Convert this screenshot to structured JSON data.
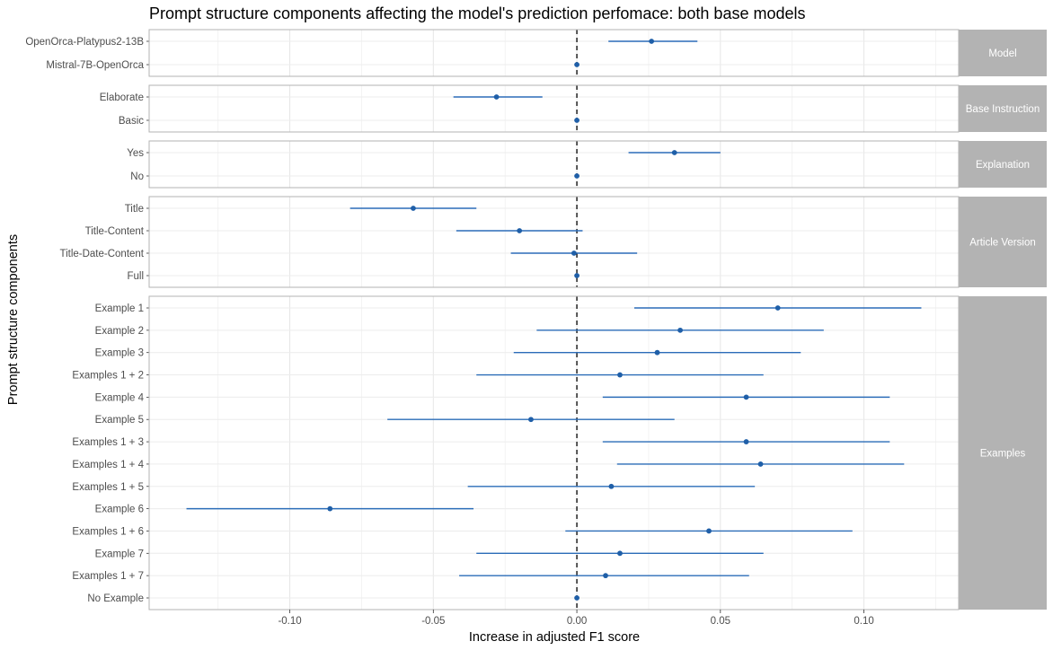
{
  "chart_data": {
    "type": "forest",
    "title": "Prompt structure components affecting the model's prediction perfomace: both base models",
    "xlabel": "Increase in adjusted F1 score",
    "ylabel": "Prompt structure components",
    "xlim": [
      -0.149,
      0.133
    ],
    "xticks": [
      -0.1,
      -0.05,
      0.0,
      0.05,
      0.1
    ],
    "xtick_labels": [
      "-0.10",
      "-0.05",
      "0.00",
      "0.05",
      "0.10"
    ],
    "reference_line": 0,
    "grid": true,
    "colors": {
      "point": "#1f5fa8",
      "line": "#2b6cb8",
      "strip": "#b3b3b3",
      "panel_border": "#b3b3b3"
    },
    "panels": [
      {
        "label": "Model",
        "rows": [
          {
            "label": "OpenOrca-Platypus2-13B",
            "estimate": 0.026,
            "low": 0.011,
            "high": 0.042
          },
          {
            "label": "Mistral-7B-OpenOrca",
            "estimate": 0.0,
            "low": 0.0,
            "high": 0.0
          }
        ]
      },
      {
        "label": "Base Instruction",
        "rows": [
          {
            "label": "Elaborate",
            "estimate": -0.028,
            "low": -0.043,
            "high": -0.012
          },
          {
            "label": "Basic",
            "estimate": 0.0,
            "low": 0.0,
            "high": 0.0
          }
        ]
      },
      {
        "label": "Explanation",
        "rows": [
          {
            "label": "Yes",
            "estimate": 0.034,
            "low": 0.018,
            "high": 0.05
          },
          {
            "label": "No",
            "estimate": 0.0,
            "low": 0.0,
            "high": 0.0
          }
        ]
      },
      {
        "label": "Article Version",
        "rows": [
          {
            "label": "Title",
            "estimate": -0.057,
            "low": -0.079,
            "high": -0.035
          },
          {
            "label": "Title-Content",
            "estimate": -0.02,
            "low": -0.042,
            "high": 0.002
          },
          {
            "label": "Title-Date-Content",
            "estimate": -0.001,
            "low": -0.023,
            "high": 0.021
          },
          {
            "label": "Full",
            "estimate": 0.0,
            "low": 0.0,
            "high": 0.0
          }
        ]
      },
      {
        "label": "Examples",
        "rows": [
          {
            "label": "Example 1",
            "estimate": 0.07,
            "low": 0.02,
            "high": 0.12
          },
          {
            "label": "Example 2",
            "estimate": 0.036,
            "low": -0.014,
            "high": 0.086
          },
          {
            "label": "Example 3",
            "estimate": 0.028,
            "low": -0.022,
            "high": 0.078
          },
          {
            "label": "Examples 1 + 2",
            "estimate": 0.015,
            "low": -0.035,
            "high": 0.065
          },
          {
            "label": "Example 4",
            "estimate": 0.059,
            "low": 0.009,
            "high": 0.109
          },
          {
            "label": "Example 5",
            "estimate": -0.016,
            "low": -0.066,
            "high": 0.034
          },
          {
            "label": "Examples 1 + 3",
            "estimate": 0.059,
            "low": 0.009,
            "high": 0.109
          },
          {
            "label": "Examples 1 + 4",
            "estimate": 0.064,
            "low": 0.014,
            "high": 0.114
          },
          {
            "label": "Examples 1 + 5",
            "estimate": 0.012,
            "low": -0.038,
            "high": 0.062
          },
          {
            "label": "Example 6",
            "estimate": -0.086,
            "low": -0.136,
            "high": -0.036
          },
          {
            "label": "Examples 1 + 6",
            "estimate": 0.046,
            "low": -0.004,
            "high": 0.096
          },
          {
            "label": "Example 7",
            "estimate": 0.015,
            "low": -0.035,
            "high": 0.065
          },
          {
            "label": "Examples 1 + 7",
            "estimate": 0.01,
            "low": -0.041,
            "high": 0.06
          },
          {
            "label": "No Example",
            "estimate": 0.0,
            "low": 0.0,
            "high": 0.0
          }
        ]
      }
    ]
  }
}
